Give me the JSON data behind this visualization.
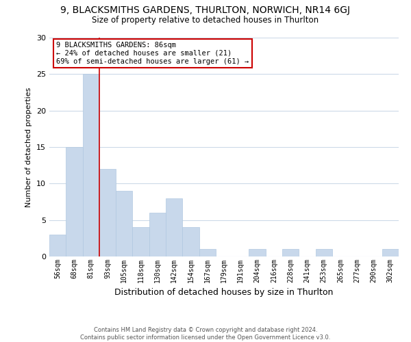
{
  "title": "9, BLACKSMITHS GARDENS, THURLTON, NORWICH, NR14 6GJ",
  "subtitle": "Size of property relative to detached houses in Thurlton",
  "xlabel": "Distribution of detached houses by size in Thurlton",
  "ylabel": "Number of detached properties",
  "bin_labels": [
    "56sqm",
    "68sqm",
    "81sqm",
    "93sqm",
    "105sqm",
    "118sqm",
    "130sqm",
    "142sqm",
    "154sqm",
    "167sqm",
    "179sqm",
    "191sqm",
    "204sqm",
    "216sqm",
    "228sqm",
    "241sqm",
    "253sqm",
    "265sqm",
    "277sqm",
    "290sqm",
    "302sqm"
  ],
  "bar_values": [
    3,
    15,
    25,
    12,
    9,
    4,
    6,
    8,
    4,
    1,
    0,
    0,
    1,
    0,
    1,
    0,
    1,
    0,
    0,
    0,
    1
  ],
  "bar_color": "#c8d8eb",
  "bar_edge_color": "#b0c8e0",
  "highlight_line_color": "#cc0000",
  "annotation_line1": "9 BLACKSMITHS GARDENS: 86sqm",
  "annotation_line2": "← 24% of detached houses are smaller (21)",
  "annotation_line3": "69% of semi-detached houses are larger (61) →",
  "annotation_box_color": "#ffffff",
  "annotation_box_edge": "#cc0000",
  "ylim": [
    0,
    30
  ],
  "yticks": [
    0,
    5,
    10,
    15,
    20,
    25,
    30
  ],
  "footer_line1": "Contains HM Land Registry data © Crown copyright and database right 2024.",
  "footer_line2": "Contains public sector information licensed under the Open Government Licence v3.0.",
  "bg_color": "#ffffff",
  "grid_color": "#ccdae8",
  "fig_width": 6.0,
  "fig_height": 5.0,
  "dpi": 100
}
